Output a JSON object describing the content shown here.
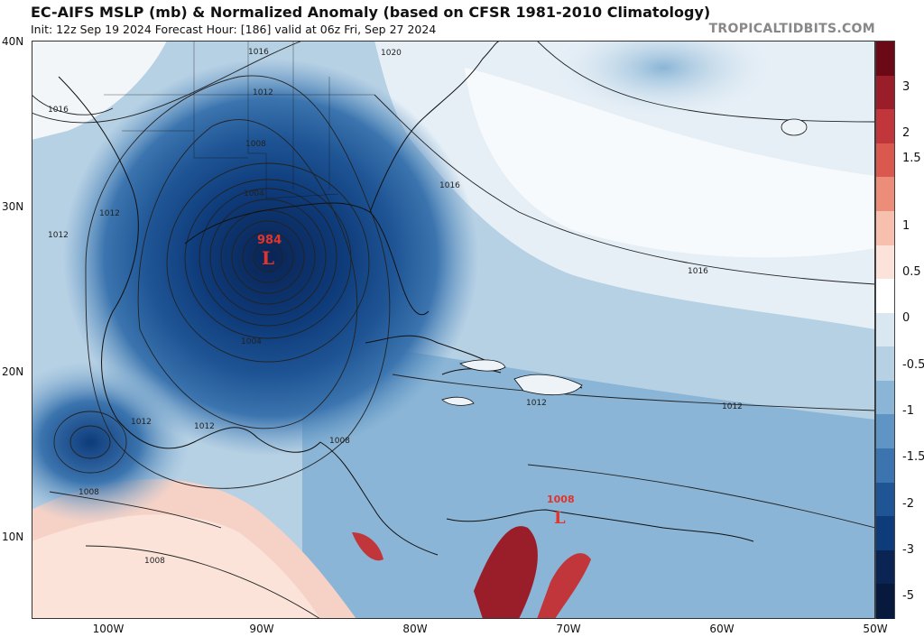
{
  "header": {
    "title": "EC-AIFS MSLP (mb) & Normalized Anomaly (based on CFSR 1981-2010 Climatology)",
    "subtitle": "Init: 12z Sep 19 2024    Forecast Hour: [186]    valid at 06z Fri, Sep 27 2024",
    "brand": "TROPICALTIDBITS.COM"
  },
  "axes": {
    "lat_labels": [
      "40N",
      "30N",
      "20N",
      "10N"
    ],
    "lon_labels": [
      "100W",
      "90W",
      "80W",
      "70W",
      "60W",
      "50W"
    ]
  },
  "colorbar": {
    "ticks": [
      "3",
      "2",
      "1.5",
      "1",
      "0.5",
      "0",
      "-0.5",
      "-1",
      "-1.5",
      "-2",
      "-3",
      "-5"
    ],
    "colors": [
      "#6b0a16",
      "#9a1d2a",
      "#c0363a",
      "#d9594f",
      "#ec8d7a",
      "#f6bfae",
      "#fbe3d9",
      "#ffffff",
      "#d9e7f1",
      "#b6d0e4",
      "#8ab5d6",
      "#5f95c4",
      "#3b74ae",
      "#1f5595",
      "#0e3b7a",
      "#0a2454",
      "#071a3e"
    ]
  },
  "contours": {
    "labels": [
      "1016",
      "1012",
      "1008",
      "1004",
      "1016",
      "1012",
      "1016",
      "1012",
      "1008",
      "1004",
      "1016",
      "1020",
      "1012",
      "1012",
      "1012",
      "1008",
      "1008",
      "1012"
    ]
  },
  "features": {
    "main_low": {
      "pressure": "984",
      "symbol": "L"
    },
    "second_low": {
      "pressure": "1008",
      "symbol": "L"
    }
  }
}
